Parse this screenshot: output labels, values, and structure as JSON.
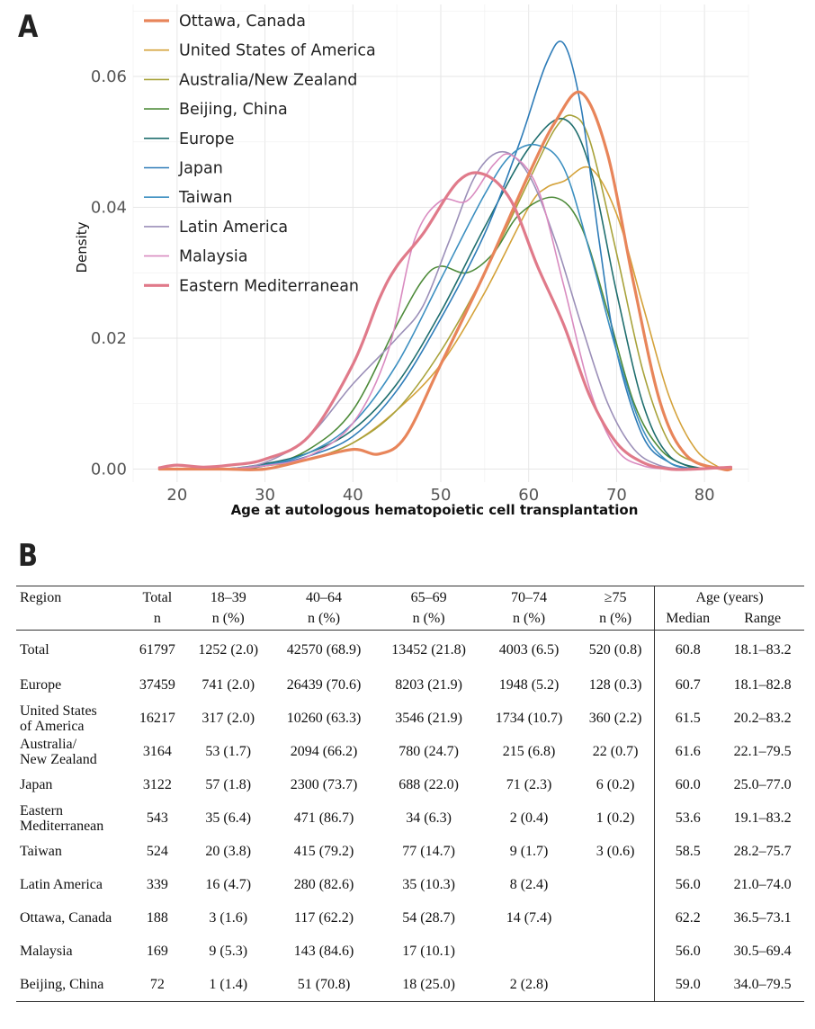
{
  "panels": {
    "a_letter": "A",
    "b_letter": "B"
  },
  "chart_data": {
    "type": "line",
    "title": "",
    "xlabel": "Age at autologous hematopoietic cell transplantation",
    "ylabel": "Density",
    "xlim": [
      15,
      85
    ],
    "ylim": [
      -0.002,
      0.071
    ],
    "xticks": [
      20,
      30,
      40,
      50,
      60,
      70,
      80
    ],
    "yticks": [
      0.0,
      0.02,
      0.04,
      0.06
    ],
    "ytick_labels": [
      "0.00",
      "0.02",
      "0.04",
      "0.06"
    ],
    "grid": true,
    "legend_position": "top-left",
    "series": [
      {
        "name": "Ottawa, Canada",
        "color": "#E8855A",
        "width": 3.2,
        "points": [
          [
            18,
            0
          ],
          [
            25,
            0
          ],
          [
            30,
            0
          ],
          [
            35,
            0.0015
          ],
          [
            40,
            0.003
          ],
          [
            43,
            0.0023
          ],
          [
            46,
            0.005
          ],
          [
            50,
            0.016
          ],
          [
            55,
            0.03
          ],
          [
            60,
            0.045
          ],
          [
            63,
            0.053
          ],
          [
            66,
            0.0575
          ],
          [
            69,
            0.048
          ],
          [
            72,
            0.028
          ],
          [
            75,
            0.01
          ],
          [
            78,
            0.002
          ],
          [
            82,
            0
          ],
          [
            83,
            0
          ]
        ]
      },
      {
        "name": "United States of America",
        "color": "#D4A23A",
        "width": 1.6,
        "points": [
          [
            18,
            0
          ],
          [
            25,
            0
          ],
          [
            30,
            0.0005
          ],
          [
            35,
            0.0015
          ],
          [
            40,
            0.004
          ],
          [
            45,
            0.009
          ],
          [
            50,
            0.016
          ],
          [
            55,
            0.027
          ],
          [
            60,
            0.04
          ],
          [
            62,
            0.043
          ],
          [
            64,
            0.044
          ],
          [
            67,
            0.046
          ],
          [
            70,
            0.039
          ],
          [
            73,
            0.025
          ],
          [
            76,
            0.011
          ],
          [
            79,
            0.003
          ],
          [
            82,
            0
          ]
        ]
      },
      {
        "name": "Australia/New Zealand",
        "color": "#A8A23A",
        "width": 1.6,
        "points": [
          [
            18,
            0
          ],
          [
            25,
            0
          ],
          [
            30,
            0.0005
          ],
          [
            35,
            0.0015
          ],
          [
            40,
            0.004
          ],
          [
            45,
            0.009
          ],
          [
            50,
            0.018
          ],
          [
            55,
            0.03
          ],
          [
            60,
            0.044
          ],
          [
            63,
            0.052
          ],
          [
            65,
            0.054
          ],
          [
            67,
            0.05
          ],
          [
            70,
            0.033
          ],
          [
            73,
            0.015
          ],
          [
            76,
            0.004
          ],
          [
            79,
            0.001
          ],
          [
            82,
            0
          ]
        ]
      },
      {
        "name": "Beijing, China",
        "color": "#4E8B3A",
        "width": 1.6,
        "points": [
          [
            18,
            0
          ],
          [
            25,
            0
          ],
          [
            30,
            0.0005
          ],
          [
            35,
            0.003
          ],
          [
            40,
            0.009
          ],
          [
            45,
            0.022
          ],
          [
            48,
            0.029
          ],
          [
            50,
            0.031
          ],
          [
            53,
            0.03
          ],
          [
            56,
            0.033
          ],
          [
            59,
            0.039
          ],
          [
            63,
            0.0415
          ],
          [
            66,
            0.037
          ],
          [
            69,
            0.024
          ],
          [
            72,
            0.01
          ],
          [
            75,
            0.003
          ],
          [
            78,
            0.0005
          ],
          [
            80,
            0
          ]
        ]
      },
      {
        "name": "Europe",
        "color": "#1F6E6E",
        "width": 1.6,
        "points": [
          [
            18,
            0
          ],
          [
            25,
            0
          ],
          [
            30,
            0.0008
          ],
          [
            35,
            0.0025
          ],
          [
            40,
            0.006
          ],
          [
            45,
            0.013
          ],
          [
            50,
            0.024
          ],
          [
            55,
            0.037
          ],
          [
            60,
            0.049
          ],
          [
            64,
            0.0535
          ],
          [
            67,
            0.046
          ],
          [
            70,
            0.027
          ],
          [
            73,
            0.01
          ],
          [
            76,
            0.002
          ],
          [
            80,
            0
          ]
        ]
      },
      {
        "name": "Japan",
        "color": "#2E7CB8",
        "width": 1.6,
        "points": [
          [
            18,
            0
          ],
          [
            25,
            0
          ],
          [
            30,
            0.0005
          ],
          [
            35,
            0.002
          ],
          [
            40,
            0.005
          ],
          [
            45,
            0.012
          ],
          [
            50,
            0.023
          ],
          [
            55,
            0.036
          ],
          [
            59,
            0.05
          ],
          [
            62,
            0.062
          ],
          [
            64,
            0.065
          ],
          [
            66,
            0.055
          ],
          [
            68,
            0.035
          ],
          [
            70,
            0.018
          ],
          [
            73,
            0.005
          ],
          [
            76,
            0.001
          ],
          [
            79,
            0
          ]
        ]
      },
      {
        "name": "Taiwan",
        "color": "#3C8FC0",
        "width": 1.6,
        "points": [
          [
            18,
            0
          ],
          [
            25,
            0
          ],
          [
            30,
            0.0006
          ],
          [
            35,
            0.0025
          ],
          [
            40,
            0.007
          ],
          [
            45,
            0.016
          ],
          [
            50,
            0.029
          ],
          [
            55,
            0.042
          ],
          [
            58,
            0.048
          ],
          [
            61,
            0.0495
          ],
          [
            64,
            0.046
          ],
          [
            67,
            0.033
          ],
          [
            70,
            0.018
          ],
          [
            73,
            0.006
          ],
          [
            76,
            0.001
          ],
          [
            79,
            0
          ]
        ]
      },
      {
        "name": "Latin America",
        "color": "#9B8FB8",
        "width": 1.6,
        "points": [
          [
            18,
            0
          ],
          [
            25,
            0
          ],
          [
            30,
            0.001
          ],
          [
            35,
            0.005
          ],
          [
            40,
            0.013
          ],
          [
            45,
            0.02
          ],
          [
            48,
            0.025
          ],
          [
            51,
            0.035
          ],
          [
            54,
            0.045
          ],
          [
            57,
            0.0485
          ],
          [
            60,
            0.045
          ],
          [
            63,
            0.035
          ],
          [
            66,
            0.022
          ],
          [
            69,
            0.01
          ],
          [
            72,
            0.003
          ],
          [
            75,
            0.0005
          ],
          [
            78,
            0
          ]
        ]
      },
      {
        "name": "Malaysia",
        "color": "#D98BC0",
        "width": 1.6,
        "points": [
          [
            18,
            0
          ],
          [
            25,
            0
          ],
          [
            30,
            0.0005
          ],
          [
            35,
            0.002
          ],
          [
            40,
            0.007
          ],
          [
            44,
            0.018
          ],
          [
            47,
            0.035
          ],
          [
            50,
            0.041
          ],
          [
            53,
            0.041
          ],
          [
            56,
            0.0465
          ],
          [
            58,
            0.048
          ],
          [
            61,
            0.043
          ],
          [
            64,
            0.028
          ],
          [
            67,
            0.012
          ],
          [
            70,
            0.003
          ],
          [
            73,
            0.0005
          ],
          [
            76,
            0
          ]
        ]
      },
      {
        "name": "Eastern Mediterranean",
        "color": "#E07A8A",
        "width": 3.2,
        "points": [
          [
            18,
            0.0002
          ],
          [
            20,
            0.0006
          ],
          [
            23,
            0.0003
          ],
          [
            26,
            0.0006
          ],
          [
            30,
            0.0015
          ],
          [
            35,
            0.005
          ],
          [
            40,
            0.016
          ],
          [
            43,
            0.026
          ],
          [
            45,
            0.031
          ],
          [
            48,
            0.036
          ],
          [
            52,
            0.044
          ],
          [
            55,
            0.045
          ],
          [
            58,
            0.041
          ],
          [
            61,
            0.031
          ],
          [
            64,
            0.022
          ],
          [
            67,
            0.011
          ],
          [
            70,
            0.004
          ],
          [
            73,
            0.001
          ],
          [
            76,
            0
          ],
          [
            79,
            0
          ],
          [
            83,
            0.0003
          ]
        ]
      }
    ]
  },
  "table": {
    "headers_row1": [
      "Region",
      "Total",
      "18–39",
      "40–64",
      "65–69",
      "70–74",
      "≥75",
      "Age (years)"
    ],
    "headers_row2": [
      "",
      "n",
      "n (%)",
      "n (%)",
      "n (%)",
      "n (%)",
      "n (%)",
      "Median",
      "Range"
    ],
    "rows": [
      [
        "Total",
        "61797",
        "1252 (2.0)",
        "42570 (68.9)",
        "13452 (21.8)",
        "4003 (6.5)",
        "520 (0.8)",
        "60.8",
        "18.1–83.2"
      ],
      [
        "Europe",
        "37459",
        "741 (2.0)",
        "26439 (70.6)",
        "8203 (21.9)",
        "1948 (5.2)",
        "128 (0.3)",
        "60.7",
        "18.1–82.8"
      ],
      [
        "United States\nof America",
        "16217",
        "317 (2.0)",
        "10260 (63.3)",
        "3546 (21.9)",
        "1734 (10.7)",
        "360 (2.2)",
        "61.5",
        "20.2–83.2"
      ],
      [
        "Australia/\nNew Zealand",
        "3164",
        "53 (1.7)",
        "2094 (66.2)",
        "780 (24.7)",
        "215 (6.8)",
        "22 (0.7)",
        "61.6",
        "22.1–79.5"
      ],
      [
        "Japan",
        "3122",
        "57 (1.8)",
        "2300 (73.7)",
        "688 (22.0)",
        "71 (2.3)",
        "6 (0.2)",
        "60.0",
        "25.0–77.0"
      ],
      [
        "Eastern\nMediterranean",
        "543",
        "35 (6.4)",
        "471 (86.7)",
        "34 (6.3)",
        "2 (0.4)",
        "1 (0.2)",
        "53.6",
        "19.1–83.2"
      ],
      [
        "Taiwan",
        "524",
        "20 (3.8)",
        "415 (79.2)",
        "77 (14.7)",
        "9 (1.7)",
        "3 (0.6)",
        "58.5",
        "28.2–75.7"
      ],
      [
        "Latin America",
        "339",
        "16 (4.7)",
        "280 (82.6)",
        "35 (10.3)",
        "8 (2.4)",
        "",
        "56.0",
        "21.0–74.0"
      ],
      [
        "Ottawa, Canada",
        "188",
        "3 (1.6)",
        "117 (62.2)",
        "54 (28.7)",
        "14 (7.4)",
        "",
        "62.2",
        "36.5–73.1"
      ],
      [
        "Malaysia",
        "169",
        "9 (5.3)",
        "143 (84.6)",
        "17 (10.1)",
        "",
        "",
        "56.0",
        "30.5–69.4"
      ],
      [
        "Beijing, China",
        "72",
        "1 (1.4)",
        "51 (70.8)",
        "18 (25.0)",
        "2 (2.8)",
        "",
        "59.0",
        "34.0–79.5"
      ]
    ]
  }
}
